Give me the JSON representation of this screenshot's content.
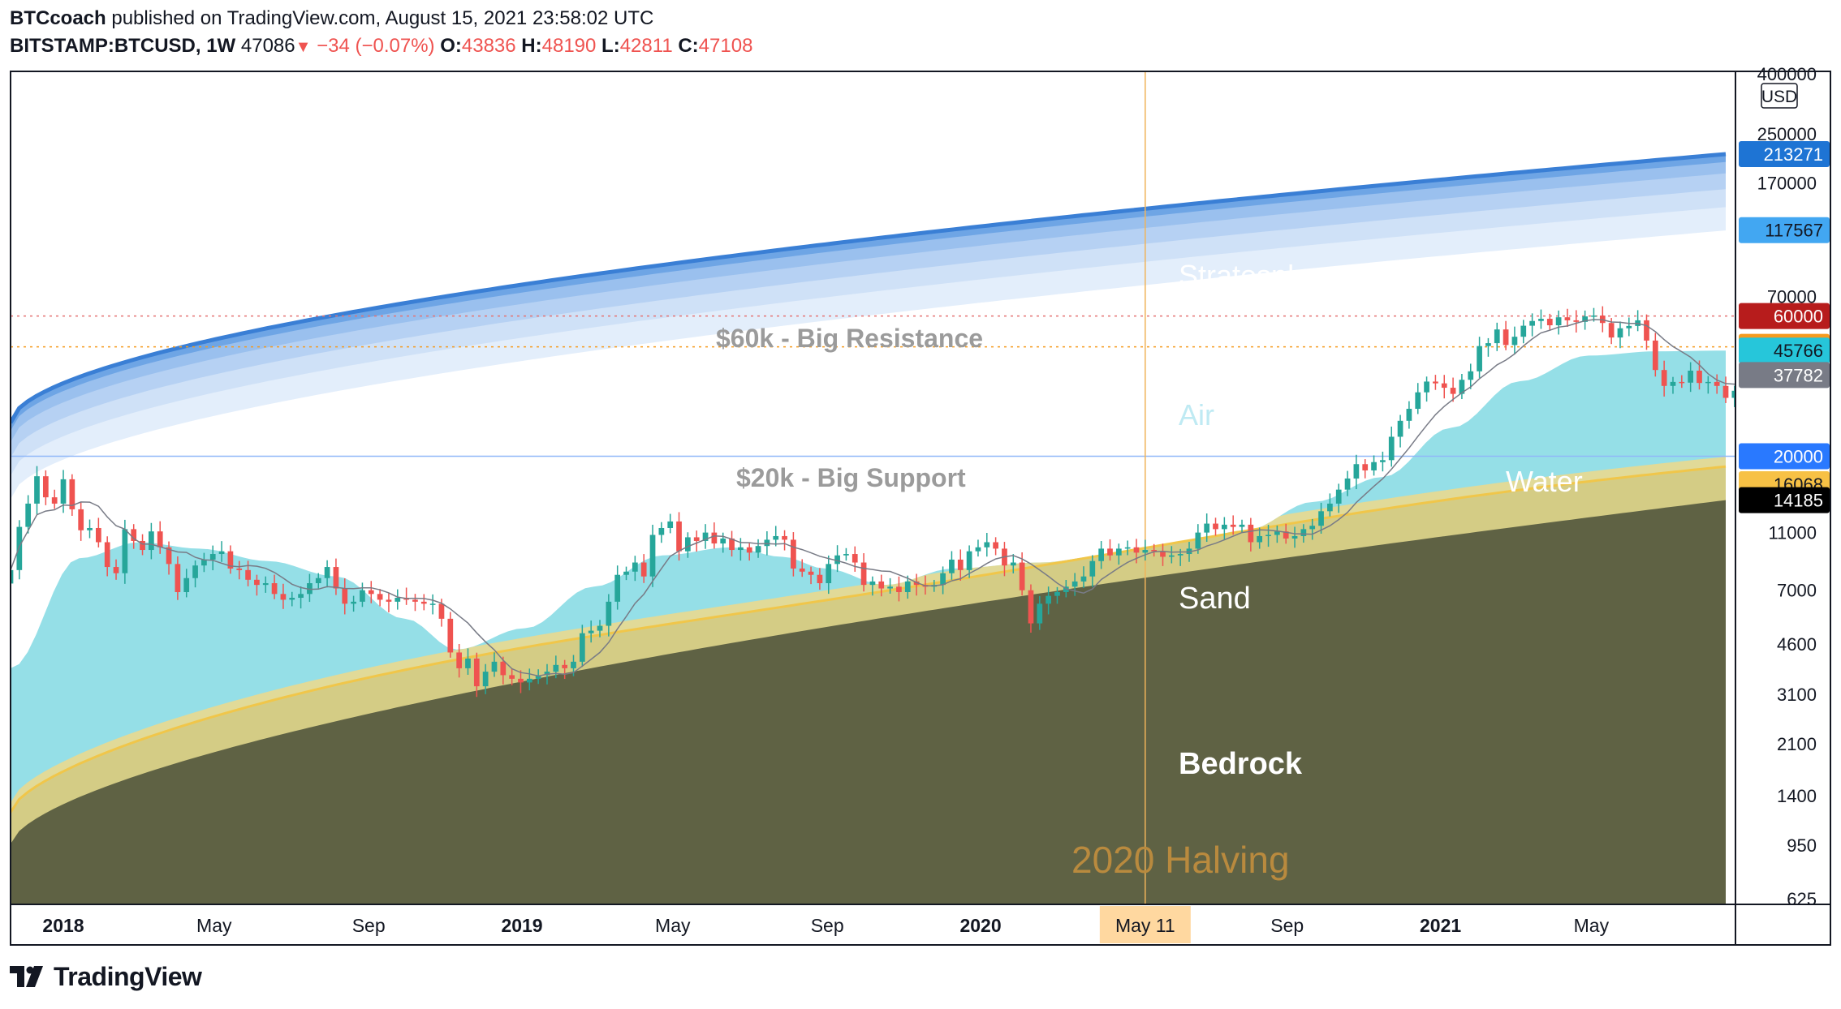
{
  "header": {
    "author": "BTCcoach",
    "published_text": " published on TradingView.com, August 15, 2021 23:58:02 UTC",
    "symbol": "BITSTAMP:BTCUSD, 1W",
    "last": "47086",
    "change": "−34 (−0.07%)",
    "o_label": "O:",
    "o_value": "43836",
    "h_label": "H:",
    "h_value": "48190",
    "l_label": "L:",
    "l_value": "42811",
    "c_label": "C:",
    "c_value": "47108"
  },
  "brand": {
    "name": "TradingView",
    "icon": "tradingview-logo-icon"
  },
  "colors": {
    "bedrock": "#5f6244",
    "sand": "#d4cc85",
    "water": "#8fdde6",
    "strato": "#3a7fd5",
    "candle_up": "#26a69a",
    "candle_down": "#ef5350",
    "halving": "#f0b35a"
  },
  "chart_data": {
    "type": "candlestick",
    "title": "BITSTAMP:BTCUSD, 1W",
    "scale": "log",
    "y_unit": "USD",
    "y_ticks": [
      "400000",
      "250000",
      "170000",
      "70000",
      "11000",
      "7000",
      "4600",
      "3100",
      "2100",
      "1400",
      "950",
      "625"
    ],
    "x_ticks": [
      {
        "label": "2018",
        "bold": true
      },
      {
        "label": "May",
        "bold": false
      },
      {
        "label": "Sep",
        "bold": false
      },
      {
        "label": "2019",
        "bold": true
      },
      {
        "label": "May",
        "bold": false
      },
      {
        "label": "Sep",
        "bold": false
      },
      {
        "label": "2020",
        "bold": true
      },
      {
        "label": "May 11",
        "bold": false,
        "highlight": true
      },
      {
        "label": "Sep",
        "bold": false
      },
      {
        "label": "2021",
        "bold": true
      },
      {
        "label": "May",
        "bold": false
      }
    ],
    "price_labels": [
      {
        "value": 213271,
        "text": "213271",
        "bg": "#1e74d4",
        "fg": "#ffffff"
      },
      {
        "value": 117567,
        "text": "117567",
        "bg": "#42a7f2",
        "fg": "#131722"
      },
      {
        "value": 60000,
        "text": "60000",
        "bg": "#b71c1c",
        "fg": "#ffffff"
      },
      {
        "value": 47108,
        "text": "47108",
        "bg": "#f59b1f",
        "fg": "#131722"
      },
      {
        "value": 45766,
        "text": "45766",
        "bg": "#26c6da",
        "fg": "#131722"
      },
      {
        "value": 37782,
        "text": "37782",
        "bg": "#787b86",
        "fg": "#ffffff"
      },
      {
        "value": 20000,
        "text": "20000",
        "bg": "#2979ff",
        "fg": "#ffffff"
      },
      {
        "value": 16068,
        "text": "16068",
        "bg": "#f7c145",
        "fg": "#131722"
      },
      {
        "value": 14185,
        "text": "14185",
        "bg": "#000000",
        "fg": "#ffffff"
      }
    ],
    "levels": [
      {
        "value": 60000,
        "style": "dotted",
        "color": "#e57373"
      },
      {
        "value": 47108,
        "style": "dotted",
        "color": "#f59b1f"
      },
      {
        "value": 20000,
        "style": "solid",
        "color": "#90b8f8"
      }
    ],
    "annotations": {
      "stratosphere": "Stratosphere",
      "resistance": "$60k - Big Resistance",
      "air": "Air",
      "support": "$20k - Big Support",
      "water": "Water",
      "sand": "Sand",
      "bedrock": "Bedrock",
      "halving": "2020 Halving"
    },
    "x_range": [
      "2017-11-20",
      "2021-08-16"
    ],
    "ohlc_weekly_closes": [
      8200,
      11500,
      13800,
      17100,
      14500,
      13800,
      16700,
      13200,
      11200,
      11400,
      10200,
      8400,
      8000,
      11300,
      10300,
      9600,
      11100,
      9800,
      8600,
      6900,
      7700,
      8500,
      8900,
      9300,
      9500,
      8300,
      8200,
      7600,
      7300,
      7400,
      6800,
      6500,
      6600,
      6800,
      7400,
      7700,
      8400,
      7100,
      6300,
      6400,
      7000,
      6800,
      6500,
      6400,
      6600,
      6500,
      6400,
      6300,
      6300,
      5600,
      4300,
      3800,
      4100,
      3300,
      3700,
      4000,
      3600,
      3500,
      3400,
      3500,
      3600,
      3700,
      3900,
      3800,
      4000,
      5000,
      5100,
      5300,
      6400,
      7900,
      8100,
      8700,
      7800,
      10800,
      11400,
      12000,
      9500,
      10600,
      10300,
      11000,
      10100,
      10500,
      9600,
      9800,
      9400,
      9900,
      10400,
      10700,
      10400,
      8300,
      8100,
      7900,
      7400,
      8600,
      9200,
      9300,
      8700,
      7300,
      7500,
      7100,
      7200,
      6900,
      7500,
      7300,
      7200,
      7300,
      8000,
      8900,
      8200,
      9500,
      9800,
      10200,
      9700,
      8500,
      8700,
      7000,
      5400,
      6300,
      6700,
      6900,
      7200,
      7500,
      7800,
      8800,
      9700,
      9200,
      9700,
      9800,
      9400,
      9600,
      9500,
      9100,
      9200,
      9300,
      9700,
      11000,
      11800,
      11300,
      11700,
      11500,
      11700,
      10200,
      10700,
      10800,
      11100,
      10500,
      10700,
      11300,
      11600,
      13000,
      13800,
      15400,
      16800,
      18800,
      17900,
      19100,
      19400,
      23300,
      26400,
      29000,
      33000,
      35900,
      35400,
      34200,
      32600,
      36400,
      38900,
      47400,
      48500,
      54000,
      47800,
      51000,
      55600,
      57700,
      58700,
      55800,
      59400,
      58000,
      57300,
      59800,
      60200,
      56800,
      50700,
      54500,
      55500,
      58000,
      49500,
      39300,
      34700,
      35800,
      35600,
      39100,
      35500,
      35800,
      34700,
      31600,
      33400,
      31800,
      33800,
      39800,
      42200,
      44600,
      47100
    ]
  }
}
